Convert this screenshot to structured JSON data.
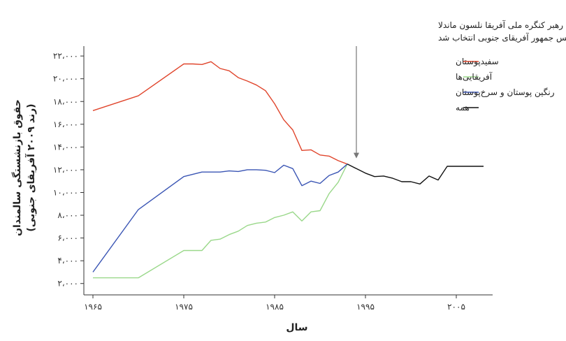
{
  "chart_data": {
    "type": "line",
    "xlabel": "سال",
    "ylabel_line1": "حقوق بازنشستگی سالمندان",
    "ylabel_line2": "(رند ۲۰۰۹ آفریقای جنوبی)",
    "xlim": [
      1964,
      2009
    ],
    "ylim": [
      1000,
      22500
    ],
    "x_ticks": [
      1965,
      1975,
      1985,
      1995,
      2005
    ],
    "x_tick_labels": [
      "۱۹۶۵",
      "۱۹۷۵",
      "۱۹۸۵",
      "۱۹۹۵",
      "۲۰۰۵"
    ],
    "y_ticks": [
      2000,
      4000,
      6000,
      8000,
      10000,
      12000,
      14000,
      16000,
      18000,
      20000,
      22000
    ],
    "y_tick_labels": [
      "۲،۰۰۰",
      "۴،۰۰۰",
      "۶،۰۰۰",
      "۸،۰۰۰",
      "۱۰،۰۰۰",
      "۱۲،۰۰۰",
      "۱۴،۰۰۰",
      "۱۶،۰۰۰",
      "۱۸،۰۰۰",
      "۲۰،۰۰۰",
      "۲۲،۰۰۰"
    ],
    "grid": false,
    "legend_position": "top-right",
    "annotation": {
      "line1": "رهبر کنگره ملی آفریقا نلسون ماندلا",
      "line2": "به عنوان رئیس جمهور آفریقای جنوبی انتخاب شد",
      "x": 1994,
      "y": 13000
    },
    "series": [
      {
        "name": "سفیدپوستان",
        "color": "#e0452c",
        "x": [
          1965,
          1970,
          1975,
          1976,
          1977,
          1978,
          1979,
          1980,
          1981,
          1982,
          1983,
          1984,
          1985,
          1986,
          1987,
          1988,
          1989,
          1990,
          1991,
          1992,
          1993
        ],
        "y": [
          17200,
          18500,
          21300,
          21300,
          21250,
          21500,
          20900,
          20700,
          20100,
          19800,
          19450,
          18950,
          17800,
          16400,
          15500,
          13700,
          13750,
          13300,
          13200,
          12800,
          12500
        ]
      },
      {
        "name": "آفریقایی‌ها",
        "color": "#9ad88a",
        "x": [
          1965,
          1970,
          1975,
          1976,
          1977,
          1978,
          1979,
          1980,
          1981,
          1982,
          1983,
          1984,
          1985,
          1986,
          1987,
          1988,
          1989,
          1990,
          1991,
          1992,
          1993
        ],
        "y": [
          2500,
          2500,
          4900,
          4900,
          4900,
          5800,
          5900,
          6300,
          6600,
          7100,
          7300,
          7400,
          7800,
          8000,
          8300,
          7500,
          8300,
          8400,
          9900,
          10900,
          12500
        ]
      },
      {
        "name": "رنگین پوستان و سرخ‌پوستان",
        "color": "#3a55b4",
        "x": [
          1965,
          1970,
          1975,
          1976,
          1977,
          1978,
          1979,
          1980,
          1981,
          1982,
          1983,
          1984,
          1985,
          1986,
          1987,
          1988,
          1989,
          1990,
          1991,
          1992,
          1993
        ],
        "y": [
          3000,
          8500,
          11400,
          11600,
          11800,
          11800,
          11800,
          11900,
          11850,
          12000,
          12000,
          11950,
          11750,
          12400,
          12100,
          10600,
          11000,
          10800,
          11500,
          11800,
          12500
        ]
      },
      {
        "name": "همه",
        "color": "#111111",
        "x": [
          1993,
          1994,
          1995,
          1996,
          1997,
          1998,
          1999,
          2000,
          2001,
          2002,
          2003,
          2004,
          2005,
          2006,
          2007,
          2008
        ],
        "y": [
          12500,
          12100,
          11700,
          11400,
          11450,
          11250,
          10950,
          10950,
          10750,
          11450,
          11100,
          12300,
          12300,
          12300,
          12300,
          12300
        ]
      }
    ]
  }
}
